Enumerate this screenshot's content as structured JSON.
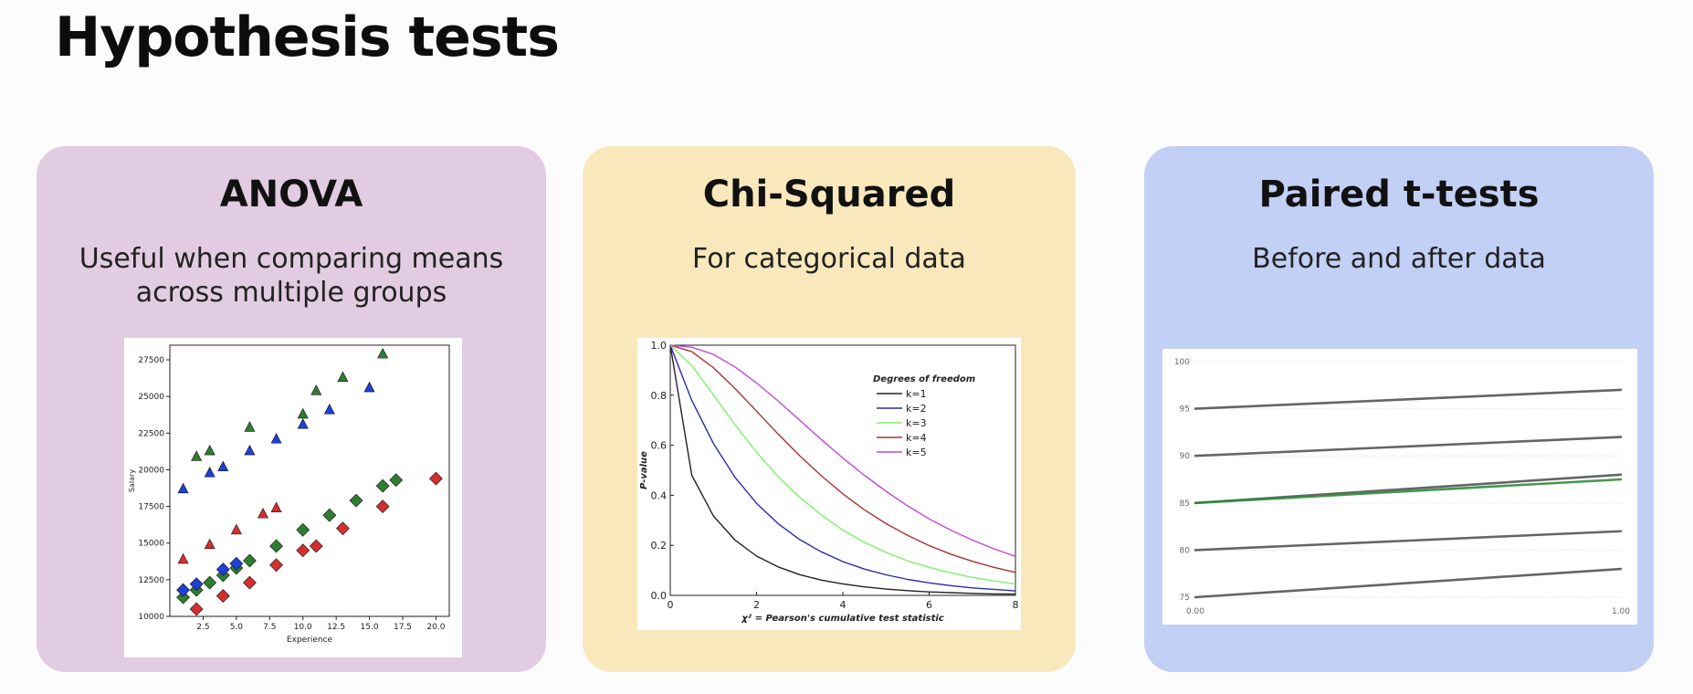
{
  "slide": {
    "title": "Hypothesis tests"
  },
  "cards": [
    {
      "title": "ANOVA",
      "description": "Useful when comparing means across multiple groups",
      "background": "#e2cce2"
    },
    {
      "title": "Chi-Squared",
      "description": "For categorical data",
      "background": "#f8e8bc"
    },
    {
      "title": "Paired t-tests",
      "description": "Before and after data",
      "background": "#c2d0f6"
    }
  ],
  "chart_data": [
    {
      "type": "scatter",
      "xlabel": "Experience",
      "ylabel": "Salary",
      "xlim": [
        0,
        21
      ],
      "ylim": [
        10000,
        28500
      ],
      "xticks": [
        "2.5",
        "5.0",
        "7.5",
        "10.0",
        "12.5",
        "15.0",
        "17.5",
        "20.0"
      ],
      "yticks": [
        "10000",
        "12500",
        "15000",
        "17500",
        "20000",
        "22500",
        "25000",
        "27500"
      ],
      "series": [
        {
          "marker": "triangle",
          "color": "#2e7d32",
          "x": [
            2,
            3,
            6,
            10,
            11,
            13,
            16
          ],
          "y": [
            20900,
            21300,
            22900,
            23800,
            25400,
            26300,
            27900
          ]
        },
        {
          "marker": "triangle",
          "color": "#1f3fd8",
          "x": [
            1,
            3,
            4,
            6,
            8,
            10,
            12,
            15
          ],
          "y": [
            18700,
            19800,
            20200,
            21300,
            22100,
            23100,
            24100,
            25600
          ]
        },
        {
          "marker": "triangle",
          "color": "#d32f2f",
          "x": [
            1,
            3,
            5,
            7,
            8
          ],
          "y": [
            13900,
            14900,
            15900,
            17000,
            17400
          ]
        },
        {
          "marker": "diamond",
          "color": "#2e7d32",
          "x": [
            1,
            2,
            3,
            4,
            5,
            6,
            8,
            10,
            12,
            14,
            16,
            17
          ],
          "y": [
            11300,
            11800,
            12300,
            12800,
            13300,
            13800,
            14800,
            15900,
            16900,
            17900,
            18900,
            19300
          ]
        },
        {
          "marker": "diamond",
          "color": "#1f3fd8",
          "x": [
            1,
            2,
            4,
            5
          ],
          "y": [
            11800,
            12200,
            13200,
            13600
          ]
        },
        {
          "marker": "diamond",
          "color": "#d32f2f",
          "x": [
            2,
            4,
            6,
            8,
            10,
            11,
            13,
            16,
            20
          ],
          "y": [
            10500,
            11400,
            12300,
            13500,
            14500,
            14800,
            16000,
            17500,
            19400
          ]
        }
      ]
    },
    {
      "type": "line",
      "xlabel": "χ² = Pearson's cumulative test statistic",
      "ylabel": "P-value",
      "xlim": [
        0,
        8
      ],
      "ylim": [
        0,
        1
      ],
      "xticks": [
        "0",
        "2",
        "4",
        "6",
        "8"
      ],
      "yticks": [
        "0.0",
        "0.2",
        "0.4",
        "0.6",
        "0.8",
        "1.0"
      ],
      "legend_title": "Degrees of freedom",
      "legend_position": "top-right",
      "x": [
        0,
        0.5,
        1,
        1.5,
        2,
        2.5,
        3,
        3.5,
        4,
        4.5,
        5,
        5.5,
        6,
        6.5,
        7,
        7.5,
        8
      ],
      "series": [
        {
          "name": "k=1",
          "color": "#222222",
          "values": [
            1.0,
            0.48,
            0.317,
            0.221,
            0.157,
            0.114,
            0.083,
            0.061,
            0.046,
            0.034,
            0.025,
            0.019,
            0.014,
            0.011,
            0.008,
            0.006,
            0.005
          ]
        },
        {
          "name": "k=2",
          "color": "#2b2bb0",
          "values": [
            1.0,
            0.779,
            0.607,
            0.472,
            0.368,
            0.287,
            0.223,
            0.174,
            0.135,
            0.105,
            0.082,
            0.064,
            0.05,
            0.039,
            0.03,
            0.024,
            0.018
          ]
        },
        {
          "name": "k=3",
          "color": "#7ef06b",
          "values": [
            1.0,
            0.919,
            0.801,
            0.682,
            0.572,
            0.475,
            0.392,
            0.321,
            0.261,
            0.212,
            0.172,
            0.138,
            0.112,
            0.09,
            0.072,
            0.058,
            0.046
          ]
        },
        {
          "name": "k=4",
          "color": "#a83232",
          "values": [
            1.0,
            0.974,
            0.91,
            0.827,
            0.736,
            0.645,
            0.558,
            0.478,
            0.406,
            0.342,
            0.287,
            0.24,
            0.199,
            0.165,
            0.136,
            0.112,
            0.092
          ]
        },
        {
          "name": "k=5",
          "color": "#c04ad6",
          "values": [
            1.0,
            0.992,
            0.963,
            0.913,
            0.849,
            0.777,
            0.7,
            0.623,
            0.549,
            0.48,
            0.416,
            0.358,
            0.306,
            0.261,
            0.221,
            0.186,
            0.156
          ]
        }
      ]
    },
    {
      "type": "line",
      "xlim": [
        0,
        1
      ],
      "ylim": [
        75,
        100
      ],
      "xticks": [
        "0.00",
        "1.00"
      ],
      "yticks": [
        "75",
        "80",
        "85",
        "90",
        "95",
        "100"
      ],
      "x": [
        0,
        1
      ],
      "series": [
        {
          "color": "#555555",
          "values": [
            95,
            97
          ]
        },
        {
          "color": "#555555",
          "values": [
            90,
            92
          ]
        },
        {
          "color": "#555555",
          "values": [
            85,
            88
          ]
        },
        {
          "color": "#2e8b3c",
          "values": [
            85,
            87.5
          ]
        },
        {
          "color": "#555555",
          "values": [
            80,
            82
          ]
        },
        {
          "color": "#555555",
          "values": [
            75,
            78
          ]
        }
      ]
    }
  ]
}
